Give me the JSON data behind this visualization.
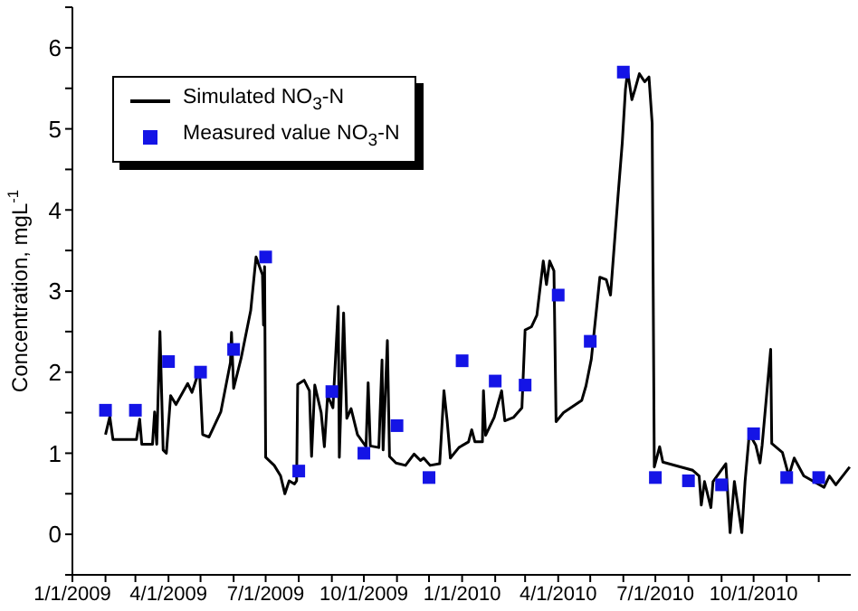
{
  "chart_data": {
    "type": "line",
    "ylabel": "Concentration, mgL$^{-1}$",
    "legend": "top left",
    "grid": false,
    "xlim": [
      "2009-01-01",
      "2010-12-31"
    ],
    "xticks": [
      {
        "value": "2009-01-01",
        "label": "1/1/2009"
      },
      {
        "value": "2009-02-01",
        "label": null
      },
      {
        "value": "2009-03-01",
        "label": null
      },
      {
        "value": "2009-04-01",
        "label": "4/1/2009"
      },
      {
        "value": "2009-05-01",
        "label": null
      },
      {
        "value": "2009-06-01",
        "label": null
      },
      {
        "value": "2009-07-01",
        "label": "7/1/2009"
      },
      {
        "value": "2009-08-01",
        "label": null
      },
      {
        "value": "2009-09-01",
        "label": null
      },
      {
        "value": "2009-10-01",
        "label": "10/1/2009"
      },
      {
        "value": "2009-11-01",
        "label": null
      },
      {
        "value": "2009-12-01",
        "label": null
      },
      {
        "value": "2010-01-01",
        "label": "1/1/2010"
      },
      {
        "value": "2010-02-01",
        "label": null
      },
      {
        "value": "2010-03-01",
        "label": null
      },
      {
        "value": "2010-04-01",
        "label": "4/1/2010"
      },
      {
        "value": "2010-05-01",
        "label": null
      },
      {
        "value": "2010-06-01",
        "label": null
      },
      {
        "value": "2010-07-01",
        "label": "7/1/2010"
      },
      {
        "value": "2010-08-01",
        "label": null
      },
      {
        "value": "2010-09-01",
        "label": null
      },
      {
        "value": "2010-10-01",
        "label": "10/1/2010"
      },
      {
        "value": "2010-11-01",
        "label": null
      },
      {
        "value": "2010-12-01",
        "label": null
      }
    ],
    "ylim": [
      -0.5,
      6.5
    ],
    "yticks": [
      {
        "value": -0.5,
        "label": null
      },
      0,
      {
        "value": 0.5,
        "label": null
      },
      1,
      {
        "value": 1.5,
        "label": null
      },
      2,
      {
        "value": 2.5,
        "label": null
      },
      3,
      {
        "value": 3.5,
        "label": null
      },
      4,
      {
        "value": 4.5,
        "label": null
      },
      5,
      {
        "value": 5.5,
        "label": null
      },
      6,
      {
        "value": 6.5,
        "label": null
      }
    ],
    "series": [
      {
        "name": "Simulated NO$_{3}$-N",
        "color": "#000000",
        "marker": "none",
        "line_style": "solid",
        "x": [
          "2009-02-01",
          "2009-02-05",
          "2009-02-08",
          "2009-03-02",
          "2009-03-05",
          "2009-03-07",
          "2009-03-17",
          "2009-03-19",
          "2009-03-21",
          "2009-03-24",
          "2009-03-27",
          "2009-03-30",
          "2009-04-03",
          "2009-04-08",
          "2009-04-19",
          "2009-04-23",
          "2009-04-30",
          "2009-05-03",
          "2009-05-09",
          "2009-05-20",
          "2009-05-29",
          "2009-05-30",
          "2009-06-01",
          "2009-06-08",
          "2009-06-17",
          "2009-06-22",
          "2009-06-28",
          "2009-06-29",
          "2009-06-30",
          "2009-07-01",
          "2009-07-09",
          "2009-07-15",
          "2009-07-19",
          "2009-07-23",
          "2009-07-28",
          "2009-07-30",
          "2009-07-31",
          "2009-08-06",
          "2009-08-11",
          "2009-08-13",
          "2009-08-16",
          "2009-08-22",
          "2009-08-25",
          "2009-08-28",
          "2009-09-02",
          "2009-09-07",
          "2009-09-08",
          "2009-09-12",
          "2009-09-15",
          "2009-09-19",
          "2009-09-25",
          "2009-10-03",
          "2009-10-05",
          "2009-10-07",
          "2009-10-15",
          "2009-10-18",
          "2009-10-19",
          "2009-10-23",
          "2009-10-25",
          "2009-10-31",
          "2009-11-09",
          "2009-11-17",
          "2009-11-23",
          "2009-11-26",
          "2009-12-02",
          "2009-12-11",
          "2009-12-15",
          "2009-12-18",
          "2009-12-21",
          "2009-12-29",
          "2010-01-07",
          "2010-01-10",
          "2010-01-13",
          "2010-01-20",
          "2010-01-21",
          "2010-01-23",
          "2010-01-31",
          "2010-02-07",
          "2010-02-10",
          "2010-02-18",
          "2010-02-26",
          "2010-03-01",
          "2010-03-07",
          "2010-03-12",
          "2010-03-18",
          "2010-03-21",
          "2010-03-24",
          "2010-03-28",
          "2010-03-30",
          "2010-04-06",
          "2010-04-23",
          "2010-04-27",
          "2010-05-02",
          "2010-05-10",
          "2010-05-16",
          "2010-05-20",
          "2010-05-27",
          "2010-05-31",
          "2010-06-03",
          "2010-06-05",
          "2010-06-09",
          "2010-06-12",
          "2010-06-16",
          "2010-06-21",
          "2010-06-25",
          "2010-06-28",
          "2010-06-30",
          "2010-07-05",
          "2010-07-08",
          "2010-07-25",
          "2010-08-05",
          "2010-08-11",
          "2010-08-13",
          "2010-08-16",
          "2010-08-22",
          "2010-08-24",
          "2010-09-05",
          "2010-09-09",
          "2010-09-13",
          "2010-09-20",
          "2010-09-23",
          "2010-09-27",
          "2010-10-03",
          "2010-10-07",
          "2010-10-09",
          "2010-10-17",
          "2010-10-18",
          "2010-10-28",
          "2010-11-03",
          "2010-11-08",
          "2010-11-17",
          "2010-12-06",
          "2010-12-11",
          "2010-12-17",
          "2010-12-30"
        ],
        "values": [
          1.23,
          1.45,
          1.17,
          1.17,
          1.42,
          1.11,
          1.11,
          1.51,
          1.11,
          2.5,
          1.04,
          1.0,
          1.71,
          1.6,
          1.86,
          1.75,
          2.03,
          1.23,
          1.2,
          1.51,
          2.12,
          2.49,
          1.8,
          2.17,
          2.76,
          3.42,
          3.2,
          2.58,
          3.3,
          0.95,
          0.85,
          0.72,
          0.5,
          0.66,
          0.62,
          0.66,
          1.85,
          1.9,
          1.77,
          0.96,
          1.84,
          1.5,
          1.08,
          1.71,
          1.56,
          2.81,
          0.95,
          2.73,
          1.43,
          1.55,
          1.23,
          1.08,
          1.87,
          1.09,
          1.07,
          2.15,
          1.04,
          2.39,
          0.96,
          0.88,
          0.85,
          0.99,
          0.91,
          0.94,
          0.85,
          0.87,
          1.77,
          1.4,
          0.94,
          1.07,
          1.14,
          1.29,
          1.14,
          1.14,
          1.77,
          1.22,
          1.44,
          1.77,
          1.4,
          1.44,
          1.56,
          2.52,
          2.56,
          2.7,
          3.37,
          3.08,
          3.37,
          3.25,
          1.39,
          1.5,
          1.65,
          1.83,
          2.16,
          3.17,
          3.14,
          2.95,
          4.17,
          4.83,
          5.49,
          5.71,
          5.36,
          5.49,
          5.68,
          5.58,
          5.64,
          5.07,
          0.83,
          1.08,
          0.89,
          0.83,
          0.79,
          0.72,
          0.36,
          0.65,
          0.33,
          0.65,
          0.87,
          0.02,
          0.65,
          0.02,
          0.65,
          1.24,
          1.1,
          0.88,
          1.1,
          2.28,
          1.12,
          1.01,
          0.72,
          0.94,
          0.72,
          0.58,
          0.72,
          0.61,
          0.83
        ]
      },
      {
        "name": "Measured value NO$_{3}$-N",
        "type": "scatter",
        "color": "#1414e6",
        "marker": "square",
        "x": [
          "2009-02-01",
          "2009-03-01",
          "2009-04-01",
          "2009-05-01",
          "2009-06-01",
          "2009-07-01",
          "2009-08-01",
          "2009-09-01",
          "2009-10-01",
          "2009-11-01",
          "2009-12-01",
          "2010-01-01",
          "2010-02-01",
          "2010-03-01",
          "2010-04-01",
          "2010-05-01",
          "2010-06-01",
          "2010-07-01",
          "2010-08-01",
          "2010-09-01",
          "2010-10-01",
          "2010-11-01",
          "2010-12-01"
        ],
        "values": [
          1.53,
          1.53,
          2.13,
          2.0,
          2.28,
          3.42,
          0.78,
          1.76,
          1.0,
          1.34,
          0.7,
          2.14,
          1.89,
          1.84,
          2.95,
          2.38,
          5.7,
          0.7,
          0.66,
          0.61,
          1.24,
          0.7,
          0.7
        ]
      }
    ]
  }
}
